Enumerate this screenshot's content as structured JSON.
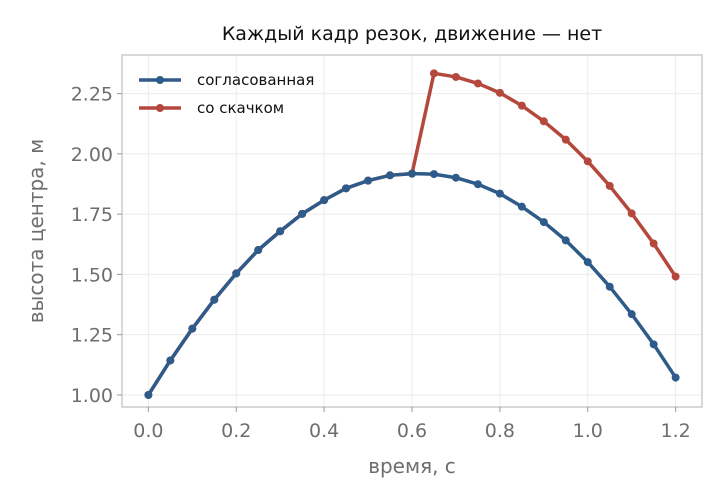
{
  "chart_data": {
    "type": "line",
    "title": "Каждый кадр резок, движение — нет",
    "xlabel": "время, с",
    "ylabel": "высота центра, м",
    "xlim": [
      -0.06,
      1.26
    ],
    "ylim": [
      0.95,
      2.41
    ],
    "xticks": [
      0.0,
      0.2,
      0.4,
      0.6,
      0.8,
      1.0,
      1.2
    ],
    "xtick_labels": [
      "0.0",
      "0.2",
      "0.4",
      "0.6",
      "0.8",
      "1.0",
      "1.2"
    ],
    "yticks": [
      1.0,
      1.25,
      1.5,
      1.75,
      2.0,
      2.25
    ],
    "ytick_labels": [
      "1.00",
      "1.25",
      "1.50",
      "1.75",
      "2.00",
      "2.25"
    ],
    "grid": true,
    "legend_position": "top-left",
    "x": [
      0.0,
      0.05,
      0.1,
      0.15,
      0.2,
      0.25,
      0.3,
      0.35,
      0.4,
      0.45,
      0.5,
      0.55,
      0.6,
      0.65,
      0.7,
      0.75,
      0.8,
      0.85,
      0.9,
      0.95,
      1.0,
      1.05,
      1.1,
      1.15,
      1.2
    ],
    "series": [
      {
        "name": "согласованная",
        "color": "#2f5b8a",
        "values": [
          1.0,
          1.143,
          1.275,
          1.395,
          1.504,
          1.601,
          1.679,
          1.751,
          1.808,
          1.857,
          1.889,
          1.911,
          1.918,
          1.916,
          1.901,
          1.874,
          1.835,
          1.781,
          1.717,
          1.641,
          1.551,
          1.449,
          1.335,
          1.21,
          1.072
        ]
      },
      {
        "name": "со скачком",
        "color": "#b5483d",
        "values": [
          1.0,
          1.143,
          1.275,
          1.395,
          1.504,
          1.601,
          1.679,
          1.751,
          1.808,
          1.857,
          1.889,
          1.911,
          1.918,
          2.334,
          2.319,
          2.292,
          2.253,
          2.2,
          2.135,
          2.059,
          1.969,
          1.867,
          1.753,
          1.628,
          1.491
        ]
      }
    ]
  }
}
